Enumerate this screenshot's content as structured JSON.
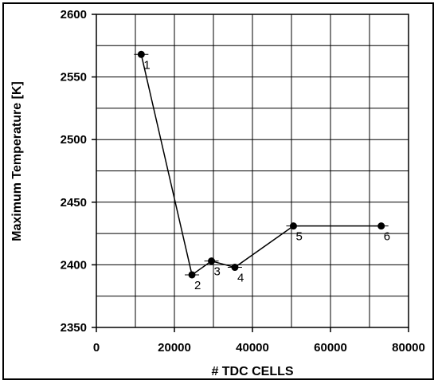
{
  "chart_data": {
    "type": "line",
    "title": "",
    "xlabel": "# TDC CELLS",
    "ylabel": "Maximum Temperature [K]",
    "xlim": [
      0,
      80000
    ],
    "ylim": [
      2350,
      2600
    ],
    "x_ticks": [
      0,
      20000,
      40000,
      60000,
      80000
    ],
    "y_ticks": [
      2350,
      2400,
      2450,
      2500,
      2550,
      2600
    ],
    "x_minor_step": 10000,
    "y_minor_step": 25,
    "grid": true,
    "legend": "none",
    "series": [
      {
        "points": [
          {
            "x": 11500,
            "y": 2568,
            "label": "1"
          },
          {
            "x": 24500,
            "y": 2392,
            "label": "2"
          },
          {
            "x": 29500,
            "y": 2403,
            "label": "3"
          },
          {
            "x": 35500,
            "y": 2398,
            "label": "4"
          },
          {
            "x": 50500,
            "y": 2431,
            "label": "5"
          },
          {
            "x": 73000,
            "y": 2431,
            "label": "6"
          }
        ]
      }
    ]
  }
}
